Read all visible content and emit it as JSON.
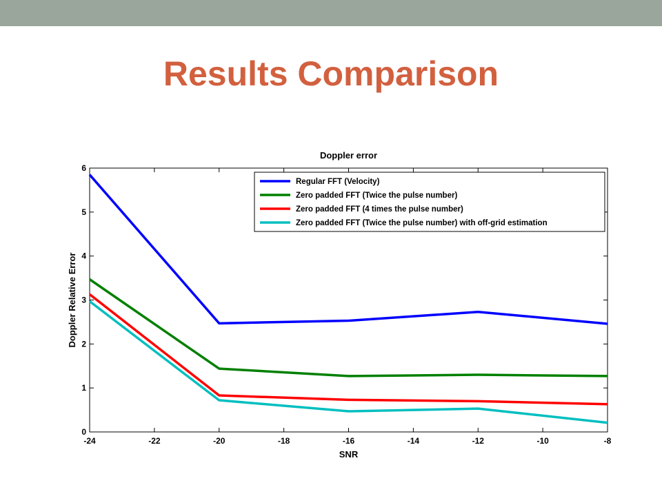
{
  "slide": {
    "title": "Results Comparison",
    "top_bar_color": "#9aa59b",
    "title_color": "#d2603f"
  },
  "chart_data": {
    "type": "line",
    "title": "Doppler error",
    "xlabel": "SNR",
    "ylabel": "Doppler Relative Error",
    "xlim": [
      -24,
      -8
    ],
    "ylim": [
      0,
      6
    ],
    "xticks": [
      -24,
      -22,
      -20,
      -18,
      -16,
      -14,
      -12,
      -10,
      -8
    ],
    "yticks": [
      0,
      1,
      2,
      3,
      4,
      5,
      6
    ],
    "grid": false,
    "legend_position": "top-right",
    "x": [
      -24,
      -20,
      -16,
      -12,
      -8
    ],
    "series": [
      {
        "name": "Regular FFT (Velocity)",
        "color": "#0000ff",
        "values": [
          5.85,
          2.47,
          2.53,
          2.73,
          2.46
        ]
      },
      {
        "name": "Zero padded FFT (Twice the pulse number)",
        "color": "#008000",
        "values": [
          3.47,
          1.44,
          1.27,
          1.3,
          1.27
        ]
      },
      {
        "name": "Zero padded FFT (4 times the pulse number)",
        "color": "#ff0000",
        "values": [
          3.13,
          0.83,
          0.73,
          0.7,
          0.63
        ]
      },
      {
        "name": "Zero padded FFT (Twice the pulse number) with off-grid estimation",
        "color": "#00bfbf",
        "values": [
          2.97,
          0.72,
          0.47,
          0.53,
          0.21
        ]
      }
    ]
  }
}
